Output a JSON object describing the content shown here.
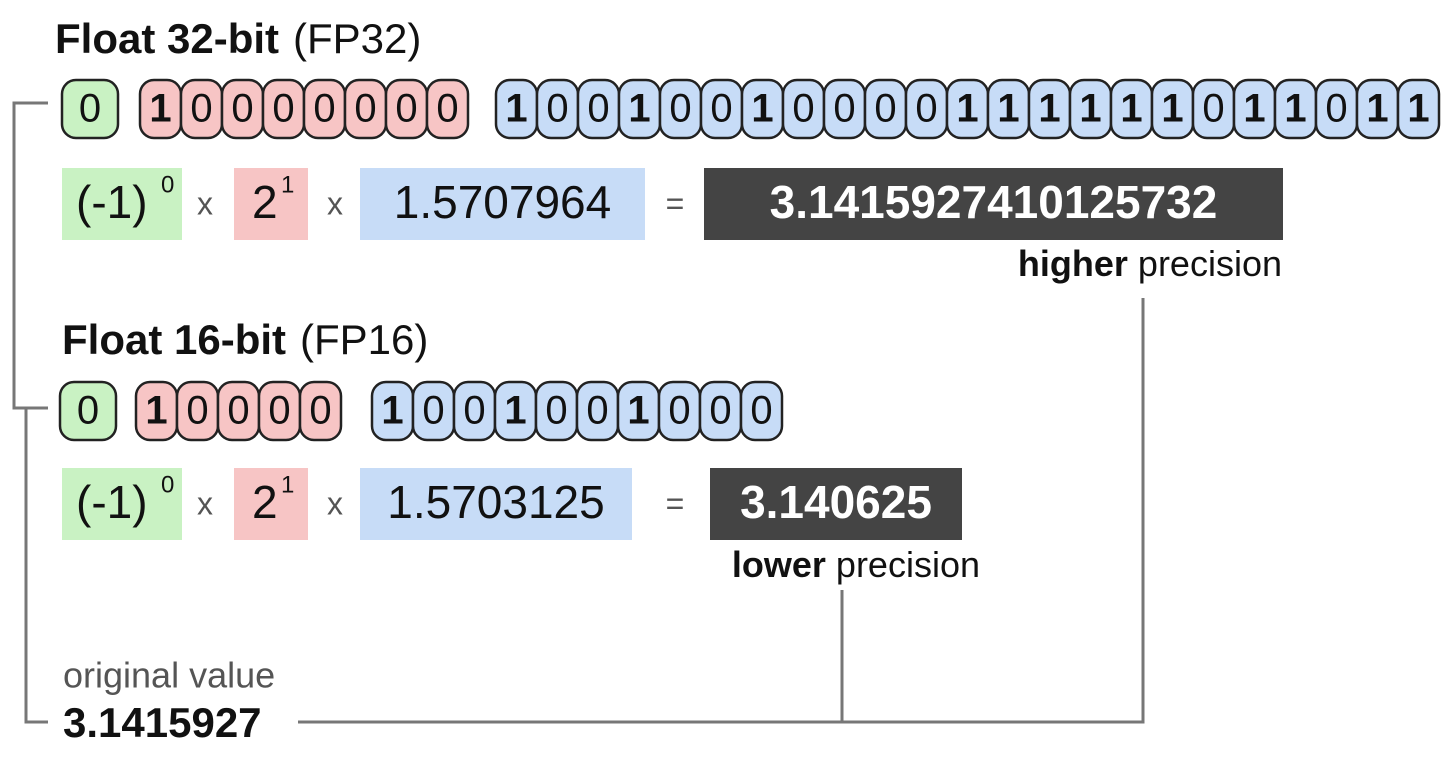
{
  "fp32": {
    "title": "Float 32-bit",
    "subtitle": "(FP32)",
    "sign": [
      "0"
    ],
    "exponent": [
      "1",
      "0",
      "0",
      "0",
      "0",
      "0",
      "0",
      "0"
    ],
    "mantissa": [
      "1",
      "0",
      "0",
      "1",
      "0",
      "0",
      "1",
      "0",
      "0",
      "0",
      "0",
      "1",
      "1",
      "1",
      "1",
      "1",
      "1",
      "0",
      "1",
      "1",
      "0",
      "1",
      "1"
    ],
    "formula": {
      "sign_base": "(-1)",
      "sign_power": "0",
      "times_1": "x",
      "exp_base": "2",
      "exp_power": "1",
      "times_2": "x",
      "mantissa": "1.5707964",
      "equals": "=",
      "result": "3.1415927410125732"
    },
    "note_bold": "higher",
    "note": "precision"
  },
  "fp16": {
    "title": "Float 16-bit",
    "subtitle": "(FP16)",
    "sign": [
      "0"
    ],
    "exponent": [
      "1",
      "0",
      "0",
      "0",
      "0"
    ],
    "mantissa": [
      "1",
      "0",
      "0",
      "1",
      "0",
      "0",
      "1",
      "0",
      "0",
      "0"
    ],
    "formula": {
      "sign_base": "(-1)",
      "sign_power": "0",
      "times_1": "x",
      "exp_base": "2",
      "exp_power": "1",
      "times_2": "x",
      "mantissa": "1.5703125",
      "equals": "=",
      "result": "3.140625"
    },
    "note_bold": "lower",
    "note": "precision"
  },
  "original": {
    "label": "original value",
    "value": "3.1415927"
  }
}
